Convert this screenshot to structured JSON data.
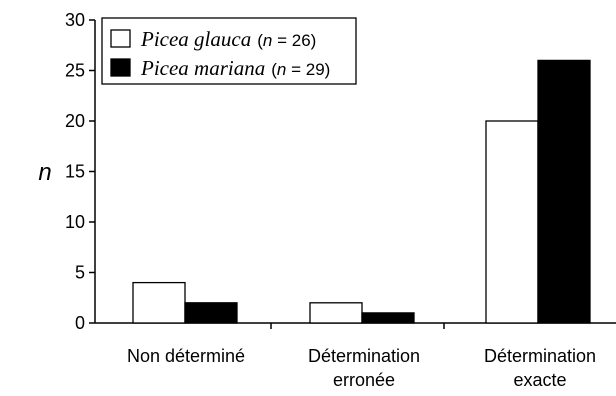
{
  "chart_data": {
    "type": "bar",
    "ylabel": "n",
    "xlabel": "",
    "ylim": [
      0,
      30
    ],
    "yticks": [
      0,
      5,
      10,
      15,
      20,
      25,
      30
    ],
    "categories": [
      [
        "Non déterminé"
      ],
      [
        "Détermination",
        "erronée"
      ],
      [
        "Détermination",
        "exacte"
      ]
    ],
    "series": [
      {
        "name": "Picea glauca",
        "n_label": "n",
        "n_value": "26",
        "fill": "#ffffff",
        "values": [
          4,
          2,
          20
        ]
      },
      {
        "name": "Picea mariana",
        "n_label": "n",
        "n_value": "29",
        "fill": "#000000",
        "values": [
          2,
          1,
          26
        ]
      }
    ],
    "legend_position": "top-left",
    "grid": false
  }
}
